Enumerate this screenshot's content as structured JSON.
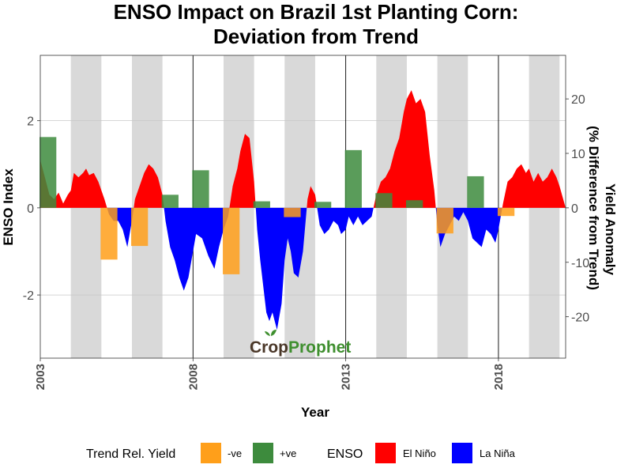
{
  "chart_data": {
    "type": "area",
    "title": [
      "ENSO Impact on Brazil 1st Planting Corn:",
      "Deviation from Trend"
    ],
    "xlabel": "Year",
    "ylabel_left": "ENSO Index",
    "ylabel_right": [
      "Yield Anomaly",
      "(% Difference from Trend)"
    ],
    "x_ticks": [
      2003,
      2008,
      2013,
      2018
    ],
    "x_range": [
      2003,
      2020.2
    ],
    "y_left_ticks": [
      -2,
      0,
      2
    ],
    "y_left_range": [
      -3.45,
      3.5
    ],
    "y_right_ticks": [
      -20,
      -10,
      0,
      10,
      20
    ],
    "y_right_range": [
      -27.6,
      28
    ],
    "grid": true,
    "shaded_year_bands": [
      [
        2004,
        2005
      ],
      [
        2006,
        2007
      ],
      [
        2009,
        2010
      ],
      [
        2011,
        2012
      ],
      [
        2014,
        2015
      ],
      [
        2016,
        2017
      ],
      [
        2019,
        2020
      ]
    ],
    "vertical_lines": [
      2008,
      2013,
      2018
    ],
    "enso_index": {
      "x": [
        2003.0,
        2003.15,
        2003.3,
        2003.45,
        2003.6,
        2003.75,
        2003.9,
        2004.0,
        2004.1,
        2004.25,
        2004.4,
        2004.5,
        2004.6,
        2004.75,
        2004.9,
        2005.0,
        2005.1,
        2005.25,
        2005.4,
        2005.55,
        2005.7,
        2005.85,
        2006.0,
        2006.1,
        2006.25,
        2006.4,
        2006.55,
        2006.7,
        2006.85,
        2007.0,
        2007.1,
        2007.25,
        2007.4,
        2007.55,
        2007.7,
        2007.85,
        2008.0,
        2008.1,
        2008.3,
        2008.5,
        2008.7,
        2008.85,
        2009.0,
        2009.15,
        2009.3,
        2009.45,
        2009.55,
        2009.7,
        2009.85,
        2010.0,
        2010.1,
        2010.2,
        2010.3,
        2010.4,
        2010.5,
        2010.6,
        2010.75,
        2010.9,
        2011.0,
        2011.1,
        2011.2,
        2011.3,
        2011.45,
        2011.6,
        2011.75,
        2011.85,
        2012.0,
        2012.15,
        2012.3,
        2012.45,
        2012.6,
        2012.75,
        2012.85,
        2013.0,
        2013.1,
        2013.25,
        2013.4,
        2013.55,
        2013.7,
        2013.85,
        2014.0,
        2014.15,
        2014.3,
        2014.45,
        2014.6,
        2014.75,
        2014.9,
        2015.0,
        2015.15,
        2015.3,
        2015.45,
        2015.6,
        2015.75,
        2015.9,
        2016.0,
        2016.1,
        2016.25,
        2016.4,
        2016.55,
        2016.7,
        2016.85,
        2017.0,
        2017.15,
        2017.3,
        2017.45,
        2017.6,
        2017.75,
        2017.9,
        2018.0,
        2018.15,
        2018.3,
        2018.45,
        2018.6,
        2018.75,
        2018.9,
        2019.0,
        2019.15,
        2019.3,
        2019.45,
        2019.6,
        2019.75,
        2019.9,
        2020.0,
        2020.2
      ],
      "values": [
        1.1,
        0.7,
        0.3,
        0.2,
        0.35,
        0.1,
        0.3,
        0.4,
        0.8,
        0.7,
        0.8,
        0.9,
        0.75,
        0.8,
        0.6,
        0.4,
        0.2,
        -0.15,
        -0.3,
        -0.3,
        -0.5,
        -0.9,
        -0.3,
        0.2,
        0.5,
        0.8,
        1.0,
        0.9,
        0.7,
        0.3,
        -0.3,
        -0.9,
        -1.2,
        -1.6,
        -1.9,
        -1.6,
        -1.0,
        -0.6,
        -0.7,
        -1.1,
        -1.4,
        -0.9,
        -0.5,
        -0.2,
        0.5,
        0.9,
        1.3,
        1.7,
        1.6,
        0.6,
        -0.5,
        -1.2,
        -1.8,
        -2.4,
        -2.6,
        -2.4,
        -2.8,
        -2.2,
        -1.2,
        -0.7,
        -1.0,
        -1.5,
        -1.6,
        -1.0,
        0.2,
        0.5,
        0.3,
        -0.4,
        -0.6,
        -0.5,
        -0.3,
        -0.4,
        -0.6,
        -0.5,
        -0.2,
        -0.4,
        -0.2,
        -0.4,
        -0.3,
        -0.2,
        0.3,
        0.6,
        0.7,
        0.9,
        1.3,
        1.6,
        2.2,
        2.5,
        2.7,
        2.4,
        2.5,
        2.2,
        1.2,
        0.4,
        -0.4,
        -0.9,
        -0.6,
        -0.4,
        -0.2,
        -0.3,
        -0.1,
        -0.3,
        -0.7,
        -0.8,
        -0.9,
        -0.5,
        -0.6,
        -0.8,
        -0.5,
        0.1,
        0.6,
        0.7,
        0.9,
        1.0,
        0.8,
        0.9,
        0.6,
        0.8,
        0.6,
        0.7,
        0.9,
        0.7,
        0.5,
        0.0
      ]
    },
    "yield_anomaly": {
      "x": [
        2003.25,
        2005.25,
        2006.25,
        2007.25,
        2008.25,
        2009.25,
        2010.25,
        2011.25,
        2012.25,
        2013.25,
        2014.25,
        2015.25,
        2016.25,
        2017.25,
        2018.25
      ],
      "values": [
        13,
        -9.5,
        -7,
        2.4,
        6.9,
        -12.2,
        1.2,
        -1.7,
        1.1,
        10.6,
        2.7,
        1.4,
        -4.7,
        5.8,
        -1.5
      ]
    },
    "legend": {
      "placement": "bottom",
      "yield_title": "Trend Rel. Yield",
      "yield_entries": [
        "-ve",
        "+ve"
      ],
      "enso_title": "ENSO",
      "enso_entries": [
        "El Niño",
        "La Niña"
      ]
    },
    "colors": {
      "el_nino": "#ff0000",
      "la_nina": "#0000ff",
      "negative_yield": "#ff9f1a",
      "positive_yield": "#3d8b3d",
      "year_band": "#d9d9d9",
      "grid": "#c8c8c8"
    },
    "watermark": {
      "part1": "Crop",
      "part2": "Prophet"
    }
  }
}
